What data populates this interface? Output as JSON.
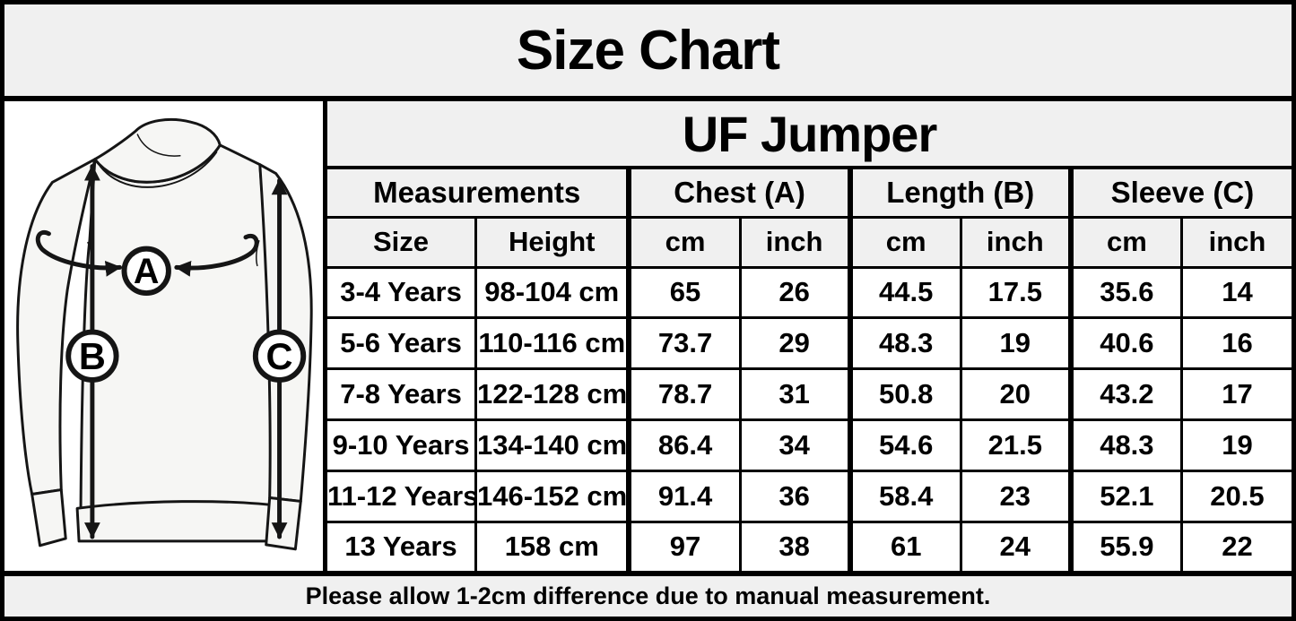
{
  "page": {
    "title": "Size Chart",
    "footer_note": "Please allow 1-2cm difference due to manual measurement."
  },
  "product": {
    "name": "UF Jumper"
  },
  "diagram": {
    "description": "jumper outline with measurement arrows",
    "labels": {
      "chest": "A",
      "length": "B",
      "sleeve": "C"
    }
  },
  "table": {
    "group_headers": {
      "measurements": "Measurements",
      "chest": "Chest (A)",
      "length": "Length (B)",
      "sleeve": "Sleeve (C)"
    },
    "sub_headers": {
      "size": "Size",
      "height": "Height",
      "cm": "cm",
      "inch": "inch"
    },
    "rows": [
      [
        "3-4 Years",
        "98-104 cm",
        "65",
        "26",
        "44.5",
        "17.5",
        "35.6",
        "14"
      ],
      [
        "5-6 Years",
        "110-116 cm",
        "73.7",
        "29",
        "48.3",
        "19",
        "40.6",
        "16"
      ],
      [
        "7-8 Years",
        "122-128 cm",
        "78.7",
        "31",
        "50.8",
        "20",
        "43.2",
        "17"
      ],
      [
        "9-10 Years",
        "134-140 cm",
        "86.4",
        "34",
        "54.6",
        "21.5",
        "48.3",
        "19"
      ],
      [
        "11-12 Years",
        "146-152 cm",
        "91.4",
        "36",
        "58.4",
        "23",
        "52.1",
        "20.5"
      ],
      [
        "13 Years",
        "158 cm",
        "97",
        "38",
        "61",
        "24",
        "55.9",
        "22"
      ]
    ]
  },
  "colors": {
    "border": "#000000",
    "header_bg": "#f0f0f0",
    "cell_bg": "#ffffff",
    "fabric": "#f6f6f4",
    "line": "#151515"
  }
}
